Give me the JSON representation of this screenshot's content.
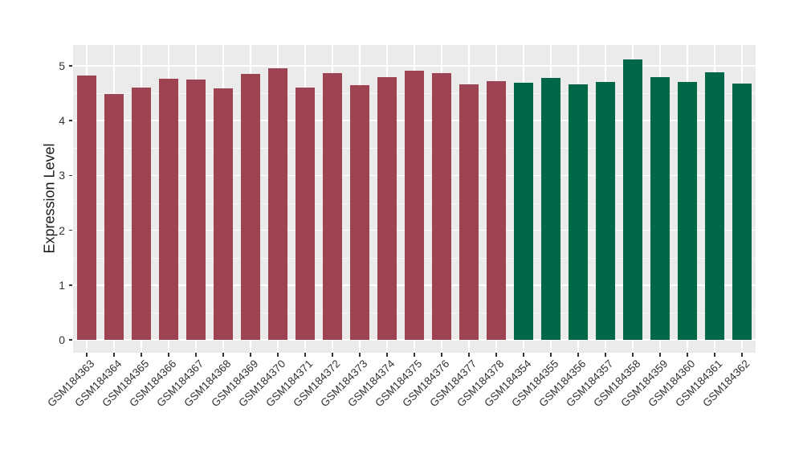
{
  "figure": {
    "background": "#FFFFFF",
    "panel_background": "#EBEBEB",
    "gridline_color": "#FFFFFF",
    "tick_label_color": "#333333",
    "axis_title_color": "#1A1A1A"
  },
  "chart_data": {
    "type": "bar",
    "title": "",
    "xlabel": "",
    "ylabel": "Expression Level",
    "ylim": [
      0,
      5.38
    ],
    "yticks": [
      0,
      1,
      2,
      3,
      4,
      5
    ],
    "grid": "major and minor horizontal white gridlines, vertical white gridlines at bar centers, gray panel",
    "legend": "none",
    "categories": [
      "GSM184363",
      "GSM184364",
      "GSM184365",
      "GSM184366",
      "GSM184367",
      "GSM184368",
      "GSM184369",
      "GSM184370",
      "GSM184371",
      "GSM184372",
      "GSM184373",
      "GSM184374",
      "GSM184375",
      "GSM184376",
      "GSM184377",
      "GSM184378",
      "GSM184354",
      "GSM184355",
      "GSM184356",
      "GSM184357",
      "GSM184358",
      "GSM184359",
      "GSM184360",
      "GSM184361",
      "GSM184362"
    ],
    "values": [
      4.82,
      4.49,
      4.61,
      4.77,
      4.75,
      4.59,
      4.86,
      4.96,
      4.61,
      4.87,
      4.65,
      4.79,
      4.91,
      4.87,
      4.66,
      4.72,
      4.69,
      4.78,
      4.67,
      4.71,
      5.11,
      4.79,
      4.71,
      4.89,
      4.68
    ],
    "groups": [
      "g1",
      "g1",
      "g1",
      "g1",
      "g1",
      "g1",
      "g1",
      "g1",
      "g1",
      "g1",
      "g1",
      "g1",
      "g1",
      "g1",
      "g1",
      "g1",
      "g2",
      "g2",
      "g2",
      "g2",
      "g2",
      "g2",
      "g2",
      "g2",
      "g2"
    ],
    "group_colors": {
      "g1": "#9E4351",
      "g2": "#016749"
    }
  }
}
